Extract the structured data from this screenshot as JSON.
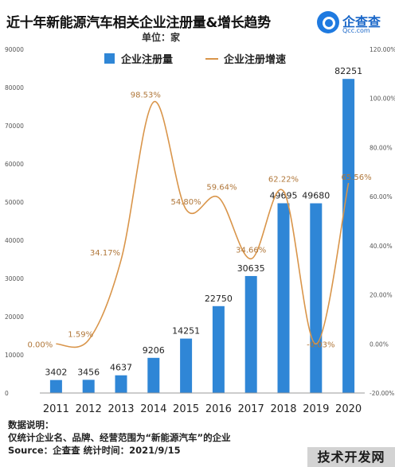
{
  "title": "近十年新能源汽车相关企业注册量&增长趋势",
  "unit_label": "单位：家",
  "logo": {
    "name": "企查查",
    "sub": "Qcc.com"
  },
  "notes": {
    "heading": "数据说明：",
    "line1": "仅统计企业名、品牌、经营范围为“新能源汽车”的企业",
    "line2": "Source：企查查   统计时间：2021/9/15"
  },
  "badge": "技术开发网",
  "colors": {
    "bar": "#2f86d6",
    "line": "#d9954a",
    "rate_label": "#b0773a"
  },
  "chart_data": {
    "type": "bar",
    "categories": [
      "2011",
      "2012",
      "2013",
      "2014",
      "2015",
      "2016",
      "2017",
      "2018",
      "2019",
      "2020"
    ],
    "series": [
      {
        "name": "企业注册量",
        "type": "bar",
        "axis": "left",
        "values": [
          3402,
          3456,
          4637,
          9206,
          14251,
          22750,
          30635,
          49695,
          49680,
          82251
        ],
        "labels": [
          "3402",
          "3456",
          "4637",
          "9206",
          "14251",
          "22750",
          "30635",
          "49695",
          "49680",
          "82251"
        ]
      },
      {
        "name": "企业注册增速",
        "type": "line",
        "axis": "right",
        "values": [
          0.0,
          1.59,
          34.17,
          98.53,
          54.8,
          59.64,
          34.66,
          62.22,
          -0.03,
          65.56
        ],
        "labels": [
          "0.00%",
          "1.59%",
          "34.17%",
          "98.53%",
          "54.80%",
          "59.64%",
          "34.66%",
          "62.22%",
          "-0.03%",
          "65.56%"
        ]
      }
    ],
    "ylim_left": [
      0,
      90000
    ],
    "ylim_right": [
      -20,
      120
    ],
    "left_ticks": [
      "0",
      "10000",
      "20000",
      "30000",
      "40000",
      "50000",
      "60000",
      "70000",
      "80000",
      "90000"
    ],
    "right_ticks": [
      "-20.00%",
      "0.00%",
      "20.00%",
      "40.00%",
      "60.00%",
      "80.00%",
      "100.00%",
      "120.00%"
    ],
    "legend_position": "top-center",
    "grid": false
  }
}
